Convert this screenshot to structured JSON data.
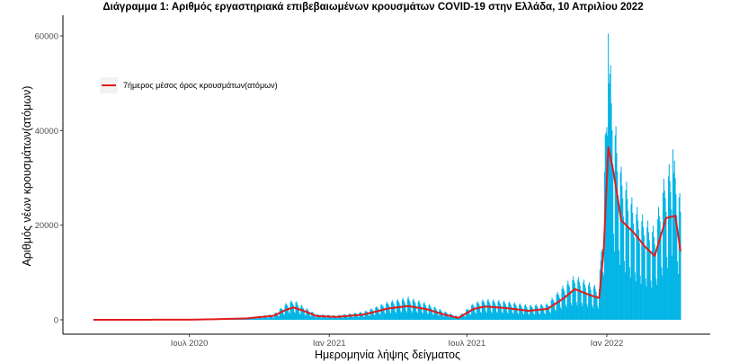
{
  "chart_data": {
    "type": "bar+line",
    "title": "Διάγραμμα 1: Αριθμός εργαστηριακά επιβεβαιωμένων κρουσμάτων COVID-19 στην Ελλάδα, 10 Απριλίου 2022",
    "xlabel": "Ημερομηνία λήψης δείγματος",
    "ylabel": "Αριθμός νέων κρουσμάτων(ατόμων)",
    "x_ticks": [
      "Ιουλ 2020",
      "Ιαν 2021",
      "Ιουλ 2021",
      "Ιαν 2022"
    ],
    "x_tick_dates": [
      "2020-07-01",
      "2021-01-01",
      "2021-07-01",
      "2022-01-01"
    ],
    "x_range": [
      "2020-02-26",
      "2022-04-08"
    ],
    "ylim": [
      0,
      60000
    ],
    "y_ticks": [
      0,
      20000,
      40000,
      60000
    ],
    "grid": false,
    "legend": {
      "position": "top-left",
      "entries": [
        "7ήμερος μέσος όρος κρουσμάτων(ατόμων)"
      ]
    },
    "colors": {
      "bars": "#00b4e6",
      "line": "#e31a1c"
    },
    "series": [
      {
        "kind": "bar",
        "resolution": "daily",
        "weekly_points": [
          {
            "date": "2020-02-26",
            "value": 5
          },
          {
            "date": "2020-07-01",
            "value": 30
          },
          {
            "date": "2020-08-05",
            "value": 150
          },
          {
            "date": "2020-09-15",
            "value": 350
          },
          {
            "date": "2020-10-20",
            "value": 900
          },
          {
            "date": "2020-11-05",
            "value": 2600
          },
          {
            "date": "2020-11-15",
            "value": 3200
          },
          {
            "date": "2020-11-30",
            "value": 2000
          },
          {
            "date": "2020-12-15",
            "value": 900
          },
          {
            "date": "2021-01-10",
            "value": 700
          },
          {
            "date": "2021-02-15",
            "value": 1300
          },
          {
            "date": "2021-03-20",
            "value": 2900
          },
          {
            "date": "2021-04-15",
            "value": 3600
          },
          {
            "date": "2021-05-10",
            "value": 2600
          },
          {
            "date": "2021-06-01",
            "value": 1400
          },
          {
            "date": "2021-06-20",
            "value": 500
          },
          {
            "date": "2021-07-10",
            "value": 2700
          },
          {
            "date": "2021-07-25",
            "value": 3300
          },
          {
            "date": "2021-08-20",
            "value": 3000
          },
          {
            "date": "2021-09-20",
            "value": 2300
          },
          {
            "date": "2021-10-15",
            "value": 2600
          },
          {
            "date": "2021-11-05",
            "value": 5500
          },
          {
            "date": "2021-11-20",
            "value": 7000
          },
          {
            "date": "2021-12-10",
            "value": 5800
          },
          {
            "date": "2021-12-22",
            "value": 5200
          },
          {
            "date": "2021-12-28",
            "value": 21000
          },
          {
            "date": "2022-01-03",
            "value": 45000
          },
          {
            "date": "2022-01-10",
            "value": 33000
          },
          {
            "date": "2022-01-20",
            "value": 24000
          },
          {
            "date": "2022-02-05",
            "value": 18500
          },
          {
            "date": "2022-02-20",
            "value": 16000
          },
          {
            "date": "2022-03-05",
            "value": 14500
          },
          {
            "date": "2022-03-20",
            "value": 24000
          },
          {
            "date": "2022-04-01",
            "value": 25000
          },
          {
            "date": "2022-04-08",
            "value": 19000
          }
        ],
        "weekday_factors": [
          1.25,
          1.35,
          1.2,
          1.1,
          0.95,
          0.55,
          0.45
        ],
        "peak_spikes": [
          {
            "date": "2022-01-03",
            "value": 60500
          },
          {
            "date": "2022-01-04",
            "value": 50000
          },
          {
            "date": "2022-03-29",
            "value": 36000
          }
        ]
      },
      {
        "kind": "line",
        "name": "7ήμερος μέσος όρος κρουσμάτων(ατόμων)",
        "points": [
          {
            "date": "2020-02-26",
            "value": 0
          },
          {
            "date": "2020-07-01",
            "value": 20
          },
          {
            "date": "2020-08-05",
            "value": 130
          },
          {
            "date": "2020-09-15",
            "value": 300
          },
          {
            "date": "2020-10-20",
            "value": 850
          },
          {
            "date": "2020-11-05",
            "value": 2100
          },
          {
            "date": "2020-11-15",
            "value": 2600
          },
          {
            "date": "2020-11-30",
            "value": 1800
          },
          {
            "date": "2020-12-15",
            "value": 800
          },
          {
            "date": "2021-01-10",
            "value": 600
          },
          {
            "date": "2021-02-15",
            "value": 1100
          },
          {
            "date": "2021-03-20",
            "value": 2400
          },
          {
            "date": "2021-04-15",
            "value": 2900
          },
          {
            "date": "2021-05-10",
            "value": 2200
          },
          {
            "date": "2021-06-01",
            "value": 1100
          },
          {
            "date": "2021-06-20",
            "value": 400
          },
          {
            "date": "2021-07-10",
            "value": 2300
          },
          {
            "date": "2021-07-25",
            "value": 2800
          },
          {
            "date": "2021-08-20",
            "value": 2500
          },
          {
            "date": "2021-09-20",
            "value": 1900
          },
          {
            "date": "2021-10-15",
            "value": 2300
          },
          {
            "date": "2021-11-05",
            "value": 4500
          },
          {
            "date": "2021-11-20",
            "value": 6500
          },
          {
            "date": "2021-12-10",
            "value": 5200
          },
          {
            "date": "2021-12-22",
            "value": 4600
          },
          {
            "date": "2021-12-28",
            "value": 15000
          },
          {
            "date": "2022-01-03",
            "value": 36500
          },
          {
            "date": "2022-01-10",
            "value": 31000
          },
          {
            "date": "2022-01-20",
            "value": 21000
          },
          {
            "date": "2022-02-05",
            "value": 18500
          },
          {
            "date": "2022-02-20",
            "value": 15500
          },
          {
            "date": "2022-03-05",
            "value": 13500
          },
          {
            "date": "2022-03-20",
            "value": 21500
          },
          {
            "date": "2022-04-01",
            "value": 22000
          },
          {
            "date": "2022-04-08",
            "value": 14500
          }
        ]
      }
    ]
  }
}
